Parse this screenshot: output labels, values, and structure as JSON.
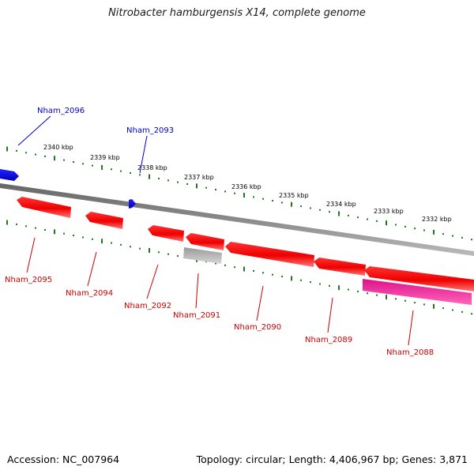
{
  "title": "Nitrobacter hamburgensis X14, complete genome",
  "footer": {
    "accession": "Accession: NC_007964",
    "summary": "Topology: circular; Length: 4,406,967 bp; Genes: 3,871"
  },
  "colors": {
    "forward_gene": "#0000ee",
    "reverse_gene": "#ee0000",
    "rna_gene": "#cc0077",
    "pseudo_gene": "#aaaaaa",
    "backbone": "#888888",
    "tick": "#227722"
  },
  "scale_labels": [
    "2340 kbp",
    "2339 kbp",
    "2338 kbp",
    "2337 kbp",
    "2336 kbp",
    "2335 kbp",
    "2334 kbp",
    "2333 kbp",
    "2332 kbp"
  ],
  "forward_genes": [
    {
      "label": "Nham_2096",
      "color": "#0000ee"
    },
    {
      "label": "Nham_2093",
      "color": "#0000ee"
    }
  ],
  "reverse_genes": [
    {
      "label": "Nham_2095",
      "color": "#cc0000"
    },
    {
      "label": "Nham_2094",
      "color": "#cc0000"
    },
    {
      "label": "Nham_2092",
      "color": "#cc0000"
    },
    {
      "label": "Nham_2091",
      "color": "#cc0000"
    },
    {
      "label": "Nham_2090",
      "color": "#cc0000"
    },
    {
      "label": "Nham_2089",
      "color": "#cc0000"
    },
    {
      "label": "Nham_2088",
      "color": "#cc0000"
    }
  ]
}
